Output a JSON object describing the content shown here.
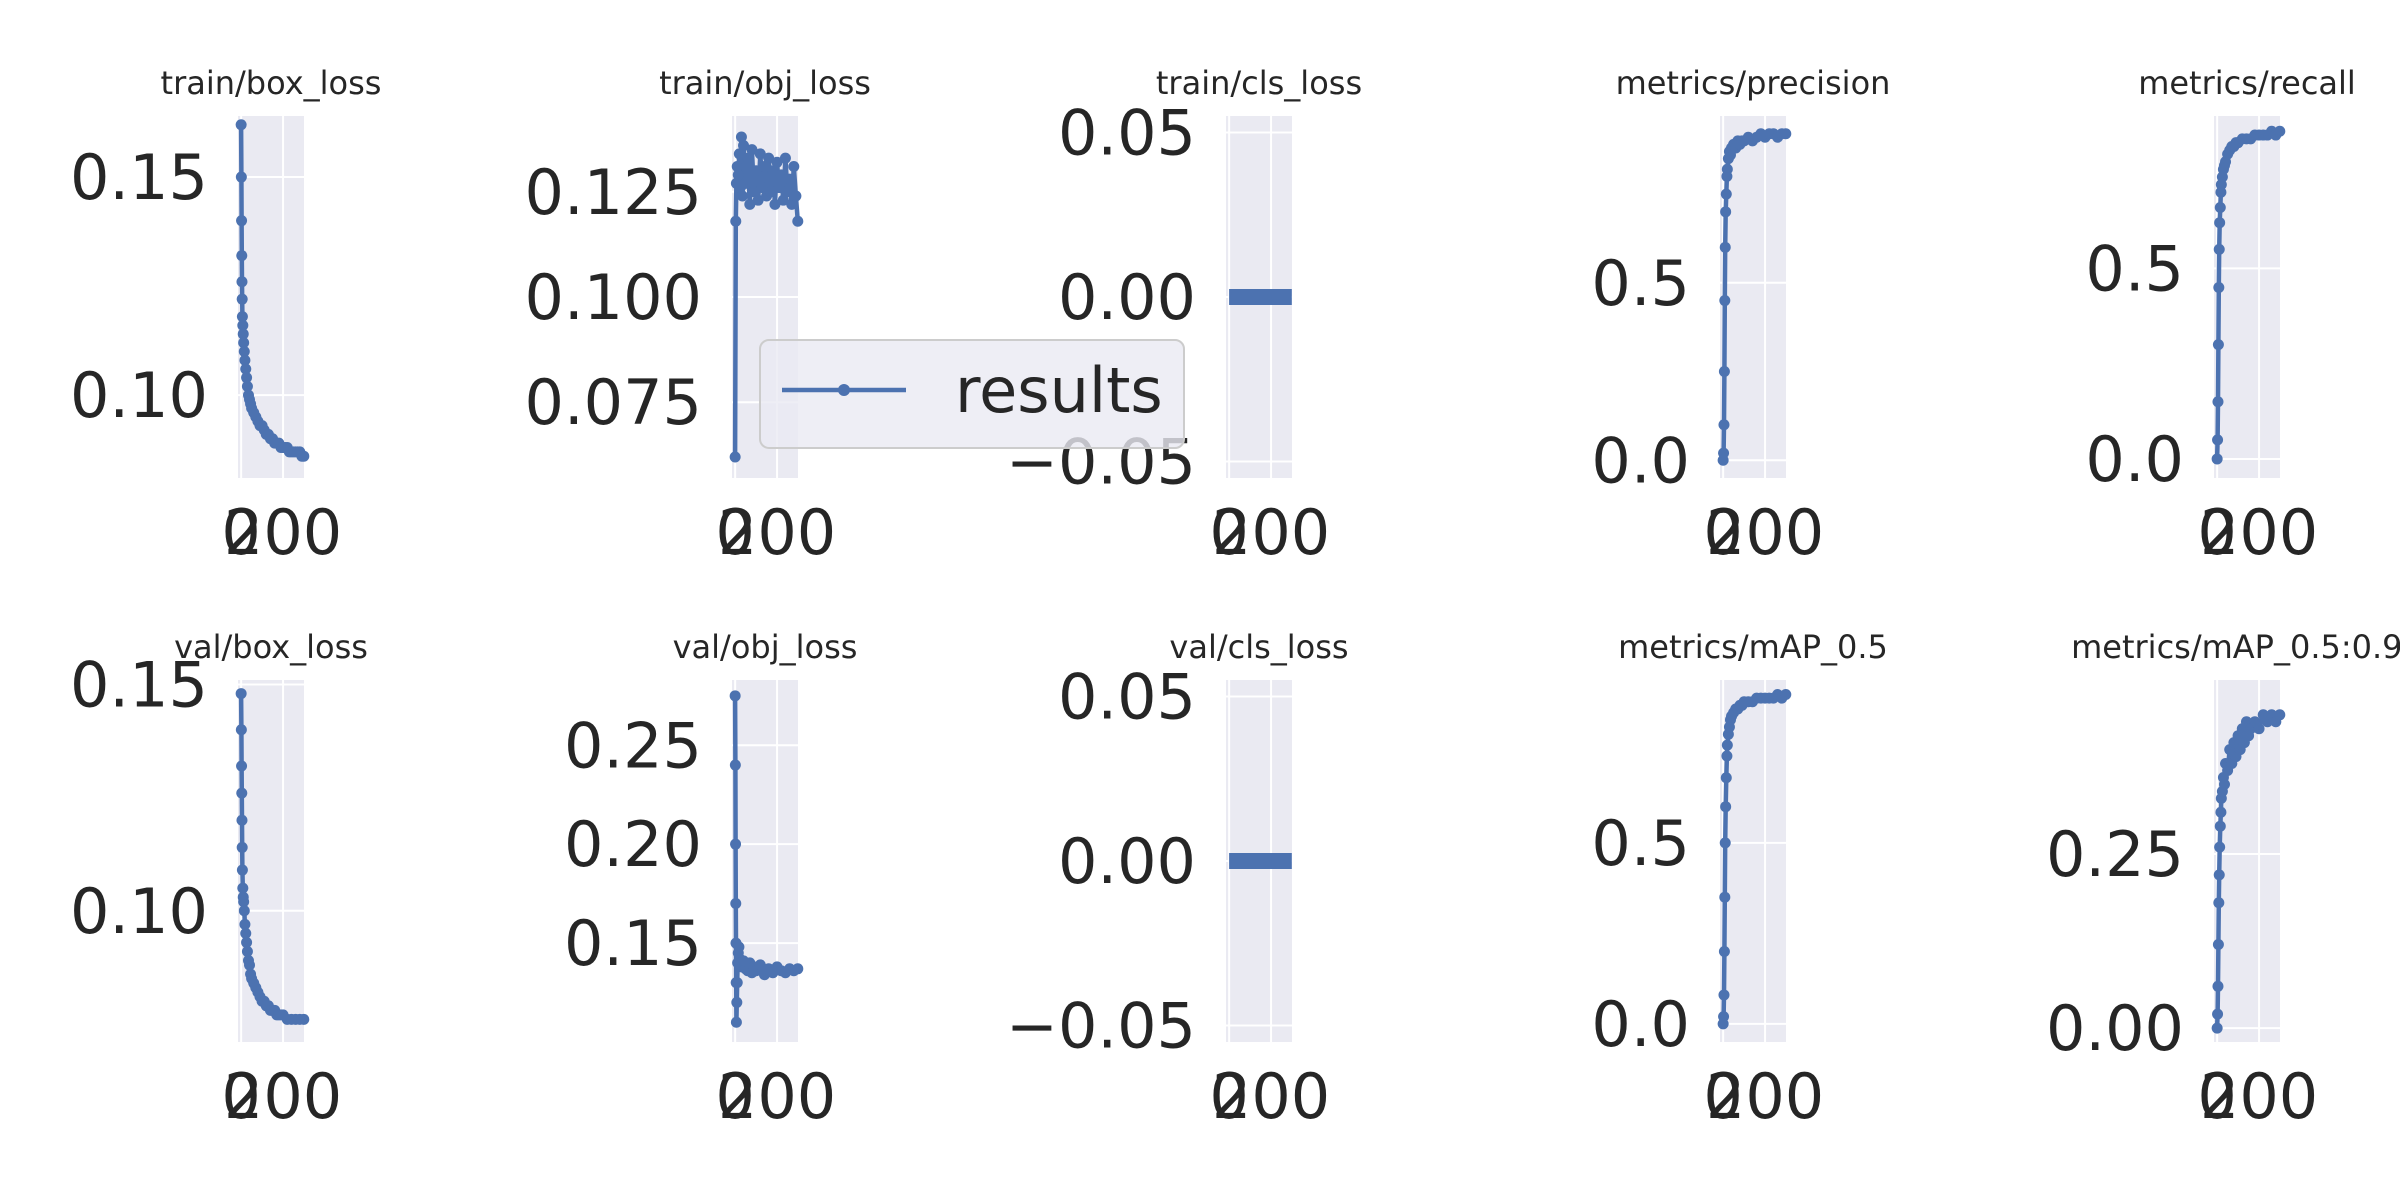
{
  "chart_data": [
    {
      "type": "line",
      "title": "train/box_loss",
      "x": [
        0,
        1,
        2,
        3,
        4,
        5,
        6,
        8,
        10,
        12,
        15,
        18,
        22,
        26,
        30,
        35,
        40,
        45,
        50,
        60,
        70,
        80,
        90,
        100,
        110,
        120,
        130,
        140,
        150,
        160,
        170,
        180,
        190,
        200,
        210,
        220,
        230,
        240,
        250,
        260,
        270,
        280,
        290,
        299
      ],
      "series": [
        {
          "name": "results",
          "values": [
            0.162,
            0.15,
            0.14,
            0.132,
            0.126,
            0.122,
            0.118,
            0.116,
            0.114,
            0.112,
            0.11,
            0.108,
            0.106,
            0.104,
            0.102,
            0.1,
            0.099,
            0.098,
            0.097,
            0.096,
            0.095,
            0.094,
            0.093,
            0.093,
            0.092,
            0.091,
            0.091,
            0.09,
            0.09,
            0.089,
            0.089,
            0.089,
            0.088,
            0.088,
            0.088,
            0.088,
            0.087,
            0.087,
            0.087,
            0.087,
            0.087,
            0.087,
            0.086,
            0.086
          ]
        }
      ],
      "ylim": [
        0.081,
        0.164
      ],
      "xlim": [
        -15,
        300
      ],
      "yticks": [
        0.1,
        0.15
      ],
      "ytick_labels": [
        "0.10",
        "0.15"
      ],
      "xtick_labels": [
        "0",
        "200"
      ]
    },
    {
      "type": "line",
      "title": "train/obj_loss",
      "x": [
        0,
        3,
        6,
        10,
        15,
        20,
        25,
        30,
        35,
        40,
        50,
        60,
        70,
        80,
        90,
        100,
        110,
        120,
        130,
        140,
        150,
        160,
        170,
        180,
        190,
        200,
        210,
        220,
        230,
        240,
        250,
        260,
        270,
        280,
        290,
        299
      ],
      "series": [
        {
          "name": "results",
          "values": [
            0.062,
            0.118,
            0.127,
            0.131,
            0.129,
            0.134,
            0.126,
            0.138,
            0.124,
            0.136,
            0.127,
            0.133,
            0.122,
            0.135,
            0.125,
            0.13,
            0.123,
            0.134,
            0.126,
            0.131,
            0.124,
            0.133,
            0.125,
            0.13,
            0.122,
            0.132,
            0.126,
            0.129,
            0.123,
            0.133,
            0.125,
            0.128,
            0.122,
            0.131,
            0.124,
            0.118
          ]
        }
      ],
      "ylim": [
        0.057,
        0.143
      ],
      "xlim": [
        -15,
        300
      ],
      "yticks": [
        0.075,
        0.1,
        0.125
      ],
      "ytick_labels": [
        "0.075",
        "0.100",
        "0.125"
      ],
      "xtick_labels": [
        "0",
        "200"
      ]
    },
    {
      "type": "line",
      "title": "train/cls_loss",
      "x": [
        0,
        50,
        100,
        150,
        200,
        250,
        299
      ],
      "series": [
        {
          "name": "results",
          "values": [
            0,
            0,
            0,
            0,
            0,
            0,
            0
          ]
        }
      ],
      "ylim": [
        -0.055,
        0.055
      ],
      "xlim": [
        -15,
        300
      ],
      "yticks": [
        -0.05,
        0,
        0.05
      ],
      "ytick_labels": [
        "−0.05",
        "0.00",
        "0.05"
      ],
      "xtick_labels": [
        "0",
        "200"
      ]
    },
    {
      "type": "line",
      "title": "metrics/precision",
      "x": [
        0,
        2,
        4,
        6,
        8,
        10,
        12,
        15,
        18,
        20,
        25,
        30,
        35,
        40,
        50,
        60,
        70,
        80,
        90,
        100,
        120,
        140,
        160,
        180,
        200,
        220,
        240,
        260,
        280,
        299
      ],
      "series": [
        {
          "name": "results",
          "values": [
            0.0,
            0.02,
            0.1,
            0.25,
            0.45,
            0.6,
            0.7,
            0.75,
            0.8,
            0.82,
            0.85,
            0.87,
            0.86,
            0.88,
            0.89,
            0.88,
            0.9,
            0.89,
            0.9,
            0.9,
            0.91,
            0.9,
            0.91,
            0.92,
            0.91,
            0.92,
            0.92,
            0.91,
            0.92,
            0.92
          ]
        }
      ],
      "ylim": [
        -0.05,
        0.97
      ],
      "xlim": [
        -15,
        300
      ],
      "yticks": [
        0,
        0.5
      ],
      "ytick_labels": [
        "0.0",
        "0.5"
      ],
      "xtick_labels": [
        "0",
        "200"
      ]
    },
    {
      "type": "line",
      "title": "metrics/recall",
      "x": [
        0,
        2,
        4,
        6,
        8,
        10,
        12,
        15,
        18,
        20,
        25,
        30,
        35,
        40,
        50,
        60,
        70,
        80,
        90,
        100,
        120,
        140,
        160,
        180,
        200,
        220,
        240,
        260,
        280,
        299
      ],
      "series": [
        {
          "name": "results",
          "values": [
            0.0,
            0.05,
            0.15,
            0.3,
            0.45,
            0.55,
            0.62,
            0.66,
            0.7,
            0.72,
            0.74,
            0.76,
            0.77,
            0.78,
            0.8,
            0.81,
            0.82,
            0.82,
            0.83,
            0.83,
            0.84,
            0.84,
            0.84,
            0.85,
            0.85,
            0.85,
            0.85,
            0.86,
            0.85,
            0.86
          ]
        }
      ],
      "ylim": [
        -0.05,
        0.9
      ],
      "xlim": [
        -15,
        300
      ],
      "yticks": [
        0,
        0.5
      ],
      "ytick_labels": [
        "0.0",
        "0.5"
      ],
      "xtick_labels": [
        "0",
        "200"
      ]
    },
    {
      "type": "line",
      "title": "val/box_loss",
      "x": [
        0,
        1,
        2,
        3,
        4,
        5,
        6,
        8,
        10,
        12,
        15,
        18,
        22,
        26,
        30,
        35,
        40,
        45,
        50,
        60,
        70,
        80,
        90,
        100,
        110,
        120,
        130,
        140,
        150,
        160,
        170,
        180,
        190,
        200,
        220,
        240,
        260,
        280,
        299
      ],
      "series": [
        {
          "name": "results",
          "values": [
            0.148,
            0.14,
            0.132,
            0.126,
            0.12,
            0.114,
            0.109,
            0.105,
            0.103,
            0.102,
            0.1,
            0.097,
            0.095,
            0.093,
            0.091,
            0.089,
            0.088,
            0.086,
            0.085,
            0.084,
            0.083,
            0.082,
            0.081,
            0.08,
            0.08,
            0.079,
            0.079,
            0.078,
            0.078,
            0.078,
            0.077,
            0.077,
            0.077,
            0.077,
            0.076,
            0.076,
            0.076,
            0.076,
            0.076
          ]
        }
      ],
      "ylim": [
        0.071,
        0.151
      ],
      "xlim": [
        -15,
        300
      ],
      "yticks": [
        0.1,
        0.15
      ],
      "ytick_labels": [
        "0.10",
        "0.15"
      ],
      "xtick_labels": [
        "0",
        "200"
      ]
    },
    {
      "type": "line",
      "title": "val/obj_loss",
      "x": [
        0,
        1,
        2,
        3,
        4,
        5,
        6,
        8,
        10,
        12,
        15,
        18,
        22,
        26,
        30,
        40,
        50,
        60,
        70,
        80,
        90,
        100,
        120,
        140,
        160,
        180,
        200,
        220,
        240,
        260,
        280,
        299
      ],
      "series": [
        {
          "name": "results",
          "values": [
            0.275,
            0.24,
            0.2,
            0.17,
            0.15,
            0.13,
            0.11,
            0.12,
            0.13,
            0.14,
            0.145,
            0.148,
            0.142,
            0.14,
            0.138,
            0.141,
            0.137,
            0.136,
            0.14,
            0.135,
            0.138,
            0.136,
            0.139,
            0.134,
            0.137,
            0.135,
            0.138,
            0.136,
            0.135,
            0.137,
            0.136,
            0.137
          ]
        }
      ],
      "ylim": [
        0.1,
        0.283
      ],
      "xlim": [
        -15,
        300
      ],
      "yticks": [
        0.15,
        0.2,
        0.25
      ],
      "ytick_labels": [
        "0.15",
        "0.20",
        "0.25"
      ],
      "xtick_labels": [
        "0",
        "200"
      ]
    },
    {
      "type": "line",
      "title": "val/cls_loss",
      "x": [
        0,
        50,
        100,
        150,
        200,
        250,
        299
      ],
      "series": [
        {
          "name": "results",
          "values": [
            0,
            0,
            0,
            0,
            0,
            0,
            0
          ]
        }
      ],
      "ylim": [
        -0.055,
        0.055
      ],
      "xlim": [
        -15,
        300
      ],
      "yticks": [
        -0.05,
        0,
        0.05
      ],
      "ytick_labels": [
        "−0.05",
        "0.00",
        "0.05"
      ],
      "xtick_labels": [
        "0",
        "200"
      ]
    },
    {
      "type": "line",
      "title": "metrics/mAP_0.5",
      "x": [
        0,
        2,
        4,
        6,
        8,
        10,
        12,
        15,
        18,
        20,
        25,
        30,
        35,
        40,
        50,
        60,
        70,
        80,
        90,
        100,
        120,
        140,
        160,
        180,
        200,
        220,
        240,
        260,
        280,
        299
      ],
      "series": [
        {
          "name": "results",
          "values": [
            0.0,
            0.02,
            0.08,
            0.2,
            0.35,
            0.5,
            0.6,
            0.68,
            0.74,
            0.77,
            0.8,
            0.82,
            0.84,
            0.85,
            0.86,
            0.87,
            0.87,
            0.88,
            0.88,
            0.89,
            0.89,
            0.89,
            0.9,
            0.9,
            0.9,
            0.9,
            0.9,
            0.91,
            0.9,
            0.91
          ]
        }
      ],
      "ylim": [
        -0.05,
        0.95
      ],
      "xlim": [
        -15,
        300
      ],
      "yticks": [
        0,
        0.5
      ],
      "ytick_labels": [
        "0.0",
        "0.5"
      ],
      "xtick_labels": [
        "0",
        "200"
      ]
    },
    {
      "type": "line",
      "title": "metrics/mAP_0.5:0.95",
      "x": [
        0,
        2,
        4,
        6,
        8,
        10,
        12,
        15,
        18,
        20,
        25,
        30,
        35,
        40,
        50,
        60,
        70,
        80,
        90,
        100,
        110,
        120,
        130,
        140,
        150,
        160,
        180,
        200,
        220,
        240,
        260,
        280,
        299
      ],
      "series": [
        {
          "name": "results",
          "values": [
            0.0,
            0.02,
            0.06,
            0.12,
            0.18,
            0.22,
            0.26,
            0.29,
            0.31,
            0.33,
            0.34,
            0.36,
            0.35,
            0.38,
            0.37,
            0.4,
            0.38,
            0.41,
            0.39,
            0.42,
            0.4,
            0.43,
            0.41,
            0.44,
            0.42,
            0.43,
            0.44,
            0.43,
            0.45,
            0.44,
            0.45,
            0.44,
            0.45
          ]
        }
      ],
      "ylim": [
        -0.02,
        0.5
      ],
      "xlim": [
        -15,
        300
      ],
      "yticks": [
        0,
        0.25
      ],
      "ytick_labels": [
        "0.00",
        "0.25"
      ],
      "xtick_labels": [
        "0",
        "200"
      ]
    }
  ],
  "legend": {
    "label": "results",
    "position": "center"
  },
  "colors": {
    "series": "#4c72b0",
    "axes_background": "#eaeaf2",
    "grid": "#ffffff",
    "text": "#262626"
  },
  "grid": true
}
